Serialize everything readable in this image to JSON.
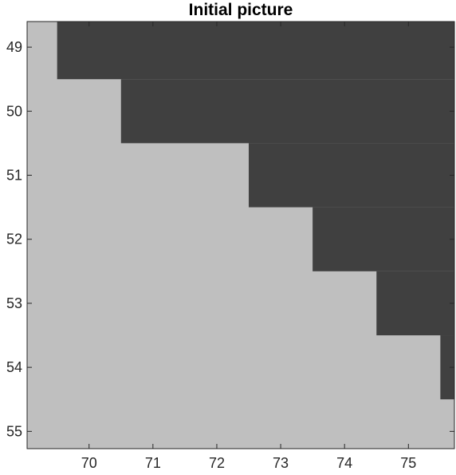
{
  "chart_data": {
    "type": "heatmap",
    "title": "Initial picture",
    "xlabel": "",
    "ylabel": "",
    "x_ticks": [
      70,
      71,
      72,
      73,
      74,
      75
    ],
    "y_ticks": [
      49,
      50,
      51,
      52,
      53,
      54,
      55
    ],
    "xlim": [
      69.03,
      75.72
    ],
    "ylim": [
      48.6,
      55.27
    ],
    "y_direction": "reversed",
    "grid": false,
    "legend": "none",
    "colors": {
      "dark": "#404040",
      "light": "#bfbfbf"
    },
    "dark_region_start_x_by_row": [
      {
        "y": 49,
        "dark_from_x": 69.5
      },
      {
        "y": 50,
        "dark_from_x": 70.5
      },
      {
        "y": 51,
        "dark_from_x": 72.5
      },
      {
        "y": 52,
        "dark_from_x": 73.5
      },
      {
        "y": 53,
        "dark_from_x": 74.5
      },
      {
        "y": 54,
        "dark_from_x": 75.5
      },
      {
        "y": 55,
        "dark_from_x": null
      }
    ]
  }
}
